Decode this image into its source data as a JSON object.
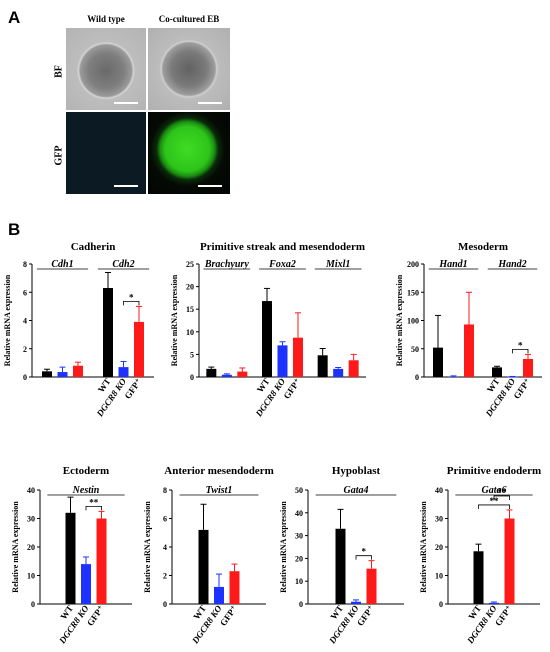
{
  "panel_a": {
    "letter": "A",
    "columns": [
      "Wild type",
      "Co-cultured EB"
    ],
    "rows": [
      "BF",
      "GFP"
    ]
  },
  "panel_b": {
    "letter": "B"
  },
  "colors": {
    "wt": "#000000",
    "ko": "#1e32ff",
    "gfp": "#ff1a1a",
    "gfp_fluor": "#33d11a"
  },
  "chart_data": [
    {
      "type": "bar",
      "title": "Cadherin",
      "ylabel": "Relative mRNA expression",
      "ylim": [
        0,
        8
      ],
      "yticks": [
        0,
        2,
        4,
        6,
        8
      ],
      "groups": [
        {
          "gene": "Cdh1",
          "show_xlabels": false,
          "values": [
            0.4,
            0.35,
            0.8
          ],
          "errors": [
            0.15,
            0.35,
            0.25
          ]
        },
        {
          "gene": "Cdh2",
          "show_xlabels": true,
          "values": [
            6.3,
            0.7,
            3.9
          ],
          "errors": [
            1.1,
            0.4,
            1.1
          ],
          "sig": [
            {
              "from": 1,
              "to": 2,
              "label": "*"
            }
          ]
        }
      ],
      "xlabels": [
        "WT",
        "DGCR8 KO",
        "GFP⁺"
      ]
    },
    {
      "type": "bar",
      "title": "Primitive streak and mesendoderm",
      "ylabel": "Relative mRNA expression",
      "ylim": [
        0,
        25
      ],
      "yticks": [
        0,
        5,
        10,
        15,
        20,
        25
      ],
      "groups": [
        {
          "gene": "Brachyury",
          "show_xlabels": false,
          "values": [
            1.8,
            0.5,
            1.2
          ],
          "errors": [
            0.4,
            0.2,
            0.8
          ]
        },
        {
          "gene": "Foxa2",
          "show_xlabels": true,
          "values": [
            16.8,
            7.0,
            8.7
          ],
          "errors": [
            2.8,
            0.8,
            5.5
          ]
        },
        {
          "gene": "Mixl1",
          "show_xlabels": false,
          "values": [
            4.8,
            1.8,
            3.7
          ],
          "errors": [
            1.5,
            0.3,
            1.3
          ]
        }
      ],
      "xlabels": [
        "WT",
        "DGCR8 KO",
        "GFP⁺"
      ]
    },
    {
      "type": "bar",
      "title": "Mesoderm",
      "ylabel": "Relative mRNA expression",
      "ylim": [
        0,
        200
      ],
      "yticks": [
        0,
        50,
        100,
        150,
        200
      ],
      "groups": [
        {
          "gene": "Hand1",
          "show_xlabels": false,
          "values": [
            52,
            1,
            93
          ],
          "errors": [
            57,
            1,
            57
          ]
        },
        {
          "gene": "Hand2",
          "show_xlabels": true,
          "values": [
            17,
            0.5,
            32
          ],
          "errors": [
            2,
            0.5,
            8
          ],
          "sig": [
            {
              "from": 1,
              "to": 2,
              "label": "*"
            }
          ]
        }
      ],
      "xlabels": [
        "WT",
        "DGCR8 KO",
        "GFP⁺"
      ]
    },
    {
      "type": "bar",
      "title": "Ectoderm",
      "ylabel": "Relative mRNA expression",
      "ylim": [
        0,
        40
      ],
      "yticks": [
        0,
        10,
        20,
        30,
        40
      ],
      "groups": [
        {
          "gene": "Nestin",
          "show_xlabels": true,
          "values": [
            32,
            14,
            30
          ],
          "errors": [
            5.5,
            2.5,
            2.5
          ],
          "sig": [
            {
              "from": 1,
              "to": 2,
              "label": "**"
            }
          ]
        }
      ],
      "xlabels": [
        "WT",
        "DGCR8 KO",
        "GFP⁺"
      ]
    },
    {
      "type": "bar",
      "title": "Anterior mesendoderm",
      "ylabel": "Relative mRNA expression",
      "ylim": [
        0,
        8
      ],
      "yticks": [
        0,
        2,
        4,
        6,
        8
      ],
      "groups": [
        {
          "gene": "Twist1",
          "show_xlabels": true,
          "values": [
            5.2,
            1.2,
            2.3
          ],
          "errors": [
            1.8,
            0.9,
            0.5
          ]
        }
      ],
      "xlabels": [
        "WT",
        "DGCR8 KO",
        "GFP⁺"
      ]
    },
    {
      "type": "bar",
      "title": "Hypoblast",
      "ylabel": "Relative mRNA expression",
      "ylim": [
        0,
        50
      ],
      "yticks": [
        0,
        10,
        20,
        30,
        40,
        50
      ],
      "groups": [
        {
          "gene": "Gata4",
          "show_xlabels": true,
          "values": [
            33,
            1,
            15.5
          ],
          "errors": [
            8.5,
            0.8,
            3.5
          ],
          "sig": [
            {
              "from": 1,
              "to": 2,
              "label": "*"
            }
          ]
        }
      ],
      "xlabels": [
        "WT",
        "DGCR8 KO",
        "GFP⁺"
      ]
    },
    {
      "type": "bar",
      "title": "Primitive endoderm",
      "ylabel": "Relative mRNA expression",
      "ylim": [
        0,
        40
      ],
      "yticks": [
        0,
        10,
        20,
        30,
        40
      ],
      "groups": [
        {
          "gene": "Gata6",
          "show_xlabels": true,
          "values": [
            18.5,
            0.4,
            30
          ],
          "errors": [
            2.5,
            0.3,
            3
          ],
          "sig": [
            {
              "from": 0,
              "to": 2,
              "label": "**"
            },
            {
              "from": 1,
              "to": 2,
              "label": "**"
            }
          ]
        }
      ],
      "xlabels": [
        "WT",
        "DGCR8 KO",
        "GFP⁺"
      ]
    }
  ]
}
